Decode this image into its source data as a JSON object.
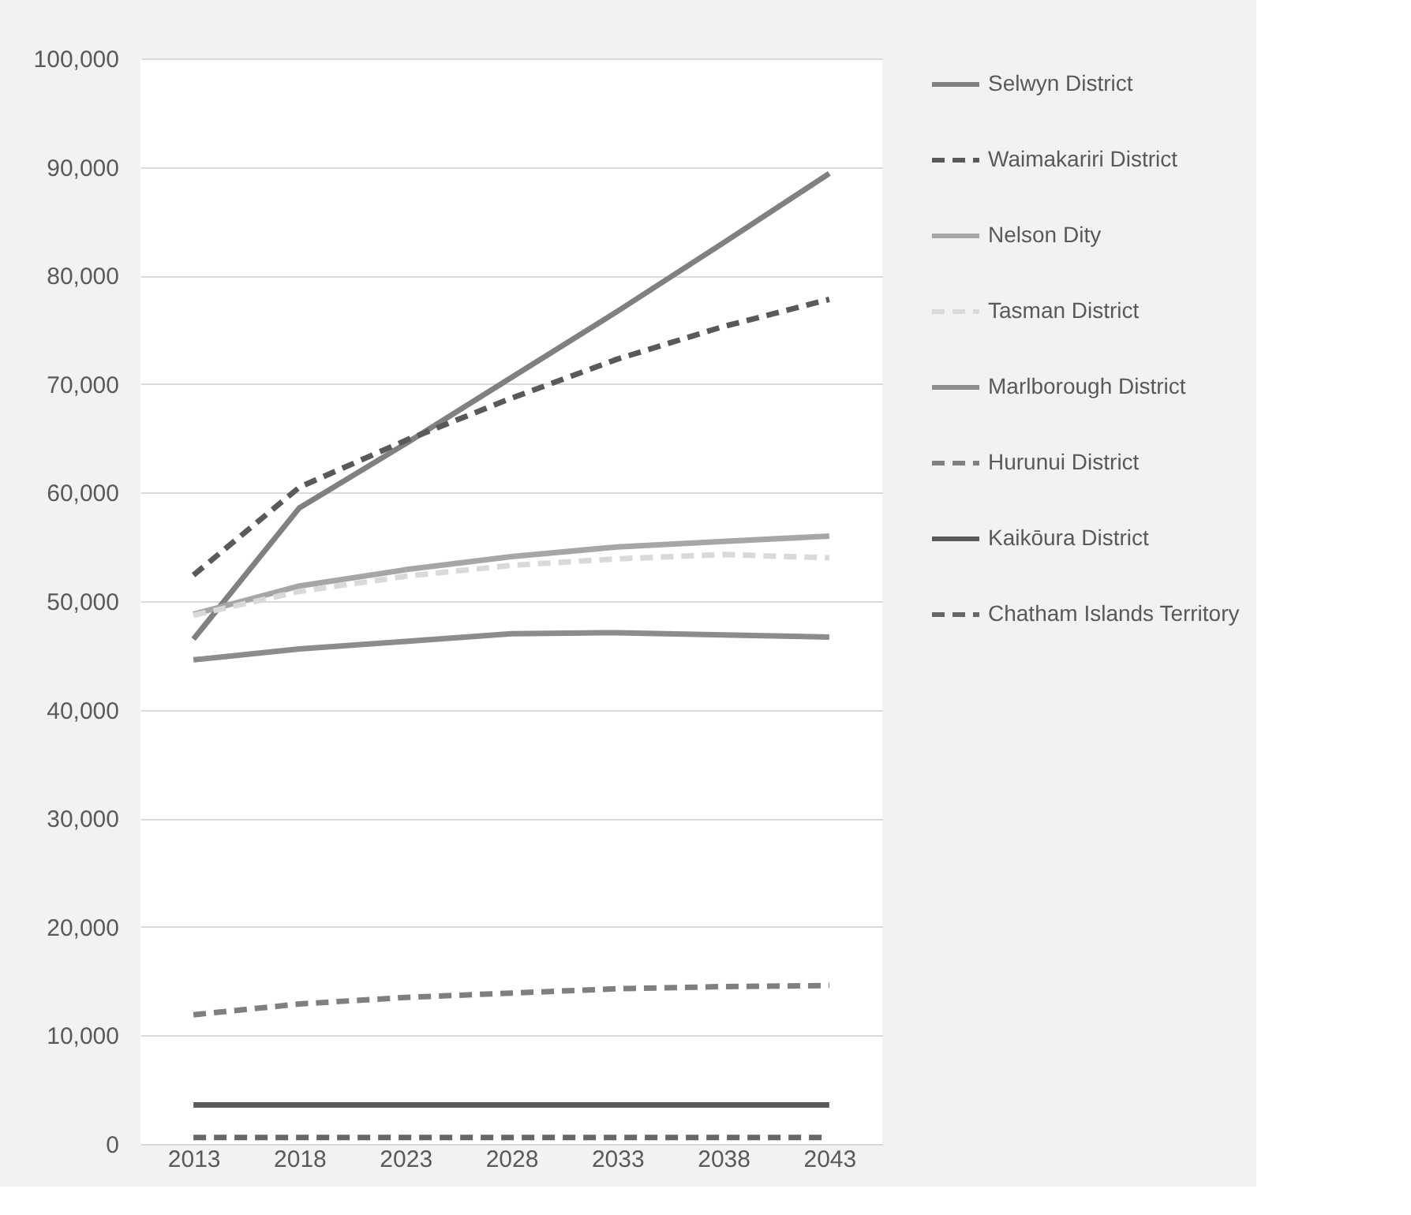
{
  "chart_data": {
    "type": "line",
    "categories": [
      "2013",
      "2018",
      "2023",
      "2028",
      "2033",
      "2038",
      "2043"
    ],
    "ylim": [
      0,
      100000
    ],
    "yticks": [
      {
        "value": 0,
        "label": "0"
      },
      {
        "value": 10000,
        "label": "10,000"
      },
      {
        "value": 20000,
        "label": "20,000"
      },
      {
        "value": 30000,
        "label": "30,000"
      },
      {
        "value": 40000,
        "label": "40,000"
      },
      {
        "value": 50000,
        "label": "50,000"
      },
      {
        "value": 60000,
        "label": "60,000"
      },
      {
        "value": 70000,
        "label": "70,000"
      },
      {
        "value": 80000,
        "label": "80,000"
      },
      {
        "value": 90000,
        "label": "90,000"
      },
      {
        "value": 100000,
        "label": "100,000"
      }
    ],
    "grid": "y",
    "legend": "right",
    "marker": "none",
    "series": [
      {
        "name": "Selwyn District",
        "color": "#808080",
        "line_style": "solid",
        "values": [
          46500,
          58600,
          64500,
          70600,
          76700,
          83000,
          89400
        ]
      },
      {
        "name": "Waimakariri District",
        "color": "#595959",
        "line_style": "dashed",
        "values": [
          52400,
          60500,
          64800,
          68700,
          72300,
          75300,
          77800
        ]
      },
      {
        "name": "Nelson Dity",
        "color": "#a6a6a6",
        "line_style": "solid",
        "values": [
          48800,
          51400,
          52900,
          54100,
          55000,
          55500,
          56000
        ]
      },
      {
        "name": "Tasman District",
        "color": "#d9d9d9",
        "line_style": "dashed",
        "values": [
          48700,
          50900,
          52300,
          53300,
          53900,
          54300,
          54000
        ]
      },
      {
        "name": "Marlborough District",
        "color": "#8c8c8c",
        "line_style": "solid",
        "values": [
          44600,
          45600,
          46300,
          47000,
          47100,
          46900,
          46700
        ]
      },
      {
        "name": "Hurunui District",
        "color": "#7f7f7f",
        "line_style": "dashed",
        "values": [
          11900,
          12900,
          13500,
          13900,
          14300,
          14500,
          14600
        ]
      },
      {
        "name": "Kaikōura District",
        "color": "#595959",
        "line_style": "solid",
        "values": [
          3600,
          3600,
          3600,
          3600,
          3600,
          3600,
          3600
        ]
      },
      {
        "name": "Chatham Islands Territory",
        "color": "#666666",
        "line_style": "dashed",
        "values": [
          600,
          600,
          600,
          600,
          600,
          600,
          600
        ]
      }
    ]
  }
}
